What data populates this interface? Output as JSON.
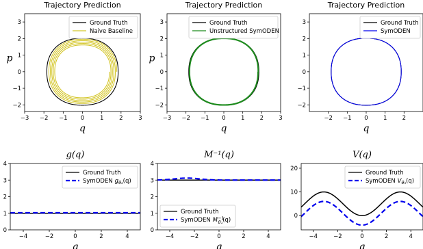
{
  "chart_data": [
    {
      "type": "line",
      "title": "Trajectory Prediction",
      "xlabel": "q",
      "ylabel": "p",
      "xlim": [
        -3,
        3
      ],
      "ylim": [
        -2.4,
        3.5
      ],
      "xticks": [
        "−3",
        "−2",
        "−1",
        "0",
        "1",
        "2",
        "3"
      ],
      "yticks": [
        "−2",
        "−1",
        "0",
        "1",
        "2",
        "3"
      ],
      "legend_position": "top-right",
      "series": [
        {
          "name": "Ground Truth",
          "color": "#000000",
          "kind": "orbit",
          "a": 1.85,
          "b": 2.02,
          "shift": 0.1,
          "turns": 1
        },
        {
          "name": "Naive Baseline",
          "color": "#d4c62a",
          "kind": "spiral",
          "a": 1.78,
          "b": 1.98,
          "a_end": 1.4,
          "b_end": 1.55,
          "shift": 0.05,
          "turns": 5
        }
      ]
    },
    {
      "type": "line",
      "title": "Trajectory Prediction",
      "xlabel": "q",
      "ylabel": "p",
      "xlim": [
        -3,
        3
      ],
      "ylim": [
        -2.4,
        3.5
      ],
      "xticks": [
        "−3",
        "−2",
        "−1",
        "0",
        "1",
        "2",
        "3"
      ],
      "yticks": [
        "−2",
        "−1",
        "0",
        "1",
        "2",
        "3"
      ],
      "legend_position": "top-right",
      "series": [
        {
          "name": "Ground Truth",
          "color": "#000000",
          "kind": "orbit",
          "a": 1.85,
          "b": 2.02,
          "shift": 0.1,
          "turns": 1
        },
        {
          "name": "Unstructured SymODEN",
          "color": "#1e8c1e",
          "kind": "spiral",
          "a": 1.83,
          "b": 2.04,
          "a_end": 1.79,
          "b_end": 1.98,
          "shift": 0.1,
          "turns": 4
        }
      ]
    },
    {
      "type": "line",
      "title": "Trajectory Prediction",
      "xlabel": "q",
      "ylabel": "",
      "xlim": [
        -3,
        3
      ],
      "ylim": [
        -2.4,
        3.5
      ],
      "xticks": [
        "−2",
        "−1",
        "0",
        "1",
        "2"
      ],
      "yticks": [
        "−2",
        "−1",
        "0",
        "1",
        "2",
        "3"
      ],
      "legend_position": "top-right",
      "series": [
        {
          "name": "Ground Truth",
          "color": "#000000",
          "kind": "orbit",
          "a": 1.85,
          "b": 2.02,
          "shift": 0.1,
          "turns": 1
        },
        {
          "name": "SymODEN",
          "color": "#0000ee",
          "kind": "orbit",
          "a": 1.85,
          "b": 2.02,
          "shift": 0.1,
          "turns": 1
        }
      ]
    },
    {
      "type": "line",
      "title": "g(q)",
      "xlabel": "q",
      "ylabel": "",
      "xlim": [
        -5,
        5
      ],
      "ylim": [
        0,
        4
      ],
      "xticks": [
        "−4",
        "−2",
        "0",
        "2",
        "4"
      ],
      "xtick_values": [
        -4,
        -2,
        0,
        2,
        4
      ],
      "yticks": [
        "0",
        "1",
        "2",
        "3",
        "4"
      ],
      "ytick_values": [
        0,
        1,
        2,
        3,
        4
      ],
      "legend_position": "upper-right",
      "series": [
        {
          "name": "Ground Truth",
          "color": "#000000",
          "dashed": false,
          "func": "const",
          "c": 1.0
        },
        {
          "name": "SymODEN",
          "name_sub": "g",
          "name_sub2": "θ₂",
          "name_tail": "(q)",
          "color": "#0000ee",
          "dashed": true,
          "func": "const",
          "c": 1.03
        }
      ]
    },
    {
      "type": "line",
      "title": "M⁻¹(q)",
      "xlabel": "q",
      "ylabel": "",
      "xlim": [
        -5,
        5
      ],
      "ylim": [
        0,
        4
      ],
      "xticks": [
        "−4",
        "−2",
        "0",
        "2",
        "4"
      ],
      "xtick_values": [
        -4,
        -2,
        0,
        2,
        4
      ],
      "yticks": [
        "0",
        "1",
        "2",
        "3",
        "4"
      ],
      "ytick_values": [
        0,
        1,
        2,
        3,
        4
      ],
      "legend_position": "lower-left",
      "series": [
        {
          "name": "Ground Truth",
          "color": "#000000",
          "dashed": false,
          "func": "const",
          "c": 3.0
        },
        {
          "name": "SymODEN",
          "name_sub": "M",
          "name_sub2": "θ₁",
          "name_sup": "−1",
          "name_tail": "(q)",
          "color": "#0000ee",
          "dashed": true,
          "func": "bump",
          "c": 3.0,
          "amp": 0.12,
          "center": -2.6,
          "width": 1.4
        }
      ]
    },
    {
      "type": "line",
      "title": "V(q)",
      "xlabel": "q",
      "ylabel": "",
      "xlim": [
        -5,
        5
      ],
      "ylim": [
        -6,
        22
      ],
      "xticks": [
        "−4",
        "−2",
        "0",
        "2",
        "4"
      ],
      "xtick_values": [
        -4,
        -2,
        0,
        2,
        4
      ],
      "yticks": [
        "0",
        "10",
        "20"
      ],
      "ytick_values": [
        0,
        10,
        20
      ],
      "legend_position": "upper-right",
      "series": [
        {
          "name": "Ground Truth",
          "color": "#000000",
          "dashed": false,
          "func": "cos",
          "mid": 5,
          "amp": 5
        },
        {
          "name": "SymODEN",
          "name_sub": "V",
          "name_sub2": "θ₃",
          "name_tail": "(q)",
          "color": "#0000ee",
          "dashed": true,
          "func": "cos",
          "mid": 1,
          "amp": 5
        }
      ]
    }
  ]
}
